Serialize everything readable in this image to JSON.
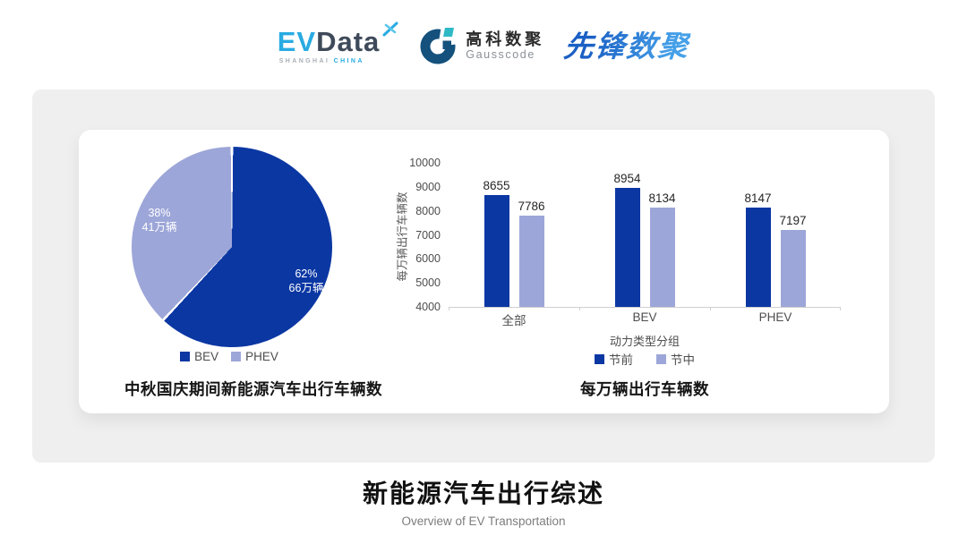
{
  "header": {
    "evdata": {
      "ev": "EV",
      "data": "Data",
      "sub_left": "SHANGHAI",
      "sub_right": "CHINA"
    },
    "gausscode": {
      "cn": "高科数聚",
      "en": "Gausscode"
    },
    "pioneer": {
      "text": "先锋数聚"
    }
  },
  "chart_data": [
    {
      "type": "pie",
      "title": "中秋国庆期间新能源汽车出行车辆数",
      "slices": [
        {
          "label": "BEV",
          "percent": 62,
          "percent_label": "62%",
          "amount_label": "66万辆",
          "color": "#0B37A3"
        },
        {
          "label": "PHEV",
          "percent": 38,
          "percent_label": "38%",
          "amount_label": "41万辆",
          "color": "#9DA6D8"
        }
      ],
      "start_angle_deg": 0,
      "direction": "clockwise",
      "legend_position": "bottom"
    },
    {
      "type": "bar",
      "title": "每万辆出行车辆数",
      "xlabel": "动力类型分组",
      "ylabel": "每万辆出行车辆数",
      "categories": [
        "全部",
        "BEV",
        "PHEV"
      ],
      "series": [
        {
          "name": "节前",
          "color": "#0B37A3",
          "values": [
            8655,
            8954,
            8147
          ]
        },
        {
          "name": "节中",
          "color": "#9DA6D8",
          "values": [
            7786,
            8134,
            7197
          ]
        }
      ],
      "ylim": [
        4000,
        10000
      ],
      "yticks": [
        4000,
        5000,
        6000,
        7000,
        8000,
        9000,
        10000
      ],
      "grid": false,
      "legend_position": "bottom"
    }
  ],
  "footer": {
    "title": "新能源汽车出行综述",
    "subtitle": "Overview of EV Transportation"
  },
  "colors": {
    "primary": "#0B37A3",
    "secondary": "#9DA6D8",
    "panel_bg": "#EFEFEF",
    "card_bg": "#FFFFFF",
    "evdata_cyan": "#29ABE2",
    "evdata_slate": "#3E4A5A",
    "gausscode_navy": "#14517D",
    "gausscode_teal": "#2FB9C6",
    "pioneer_blue": "#2B6FD0"
  }
}
